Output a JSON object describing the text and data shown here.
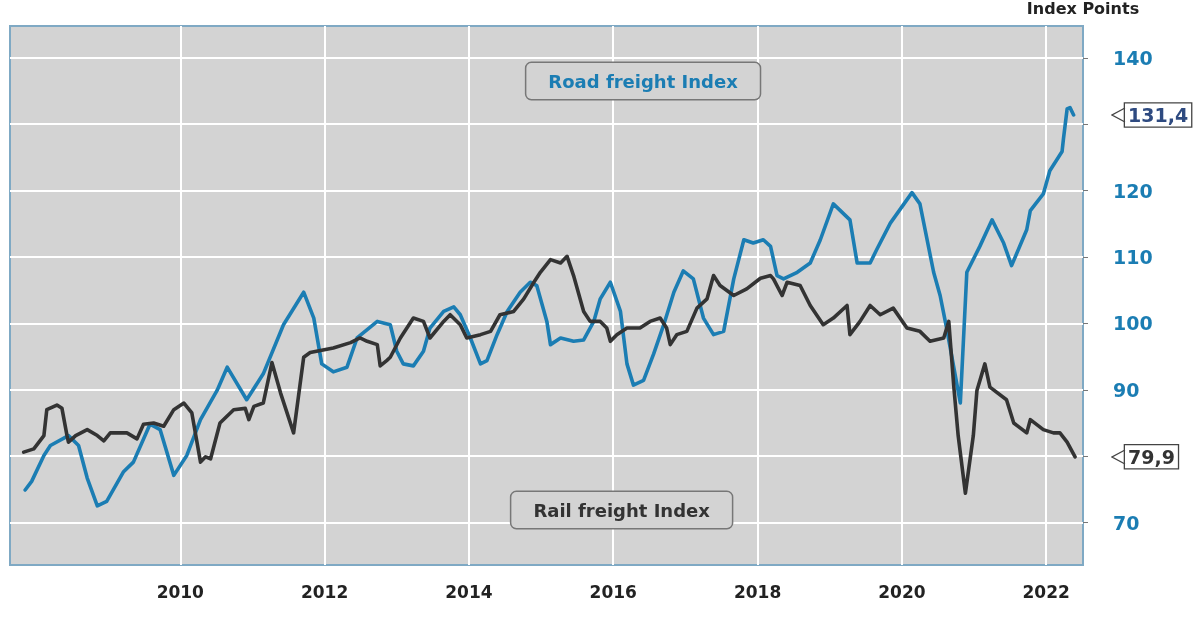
{
  "chart_data": {
    "type": "line",
    "ylabel": "Index Points",
    "xlim": [
      2007.64,
      2022.51
    ],
    "xticks": [
      2010,
      2012,
      2014,
      2016,
      2018,
      2020,
      2022
    ],
    "ylim": [
      63.6,
      144.8
    ],
    "yticks": [
      70,
      {
        "value": 80,
        "label": null
      },
      90,
      100,
      110,
      120,
      {
        "value": 130,
        "label": null
      },
      140
    ],
    "grid": true,
    "legend": false,
    "marker": "none",
    "line_style": "solid",
    "annotations": [
      {
        "text": "131,4",
        "x": 2022.38,
        "y": 131.4
      },
      {
        "text": "79,9",
        "x": 2022.4,
        "y": 79.9
      }
    ],
    "series": [
      {
        "name": "Road freight Index",
        "color": "#1b7db3",
        "x": [
          2007.85,
          2007.94,
          2008.11,
          2008.2,
          2008.45,
          2008.59,
          2008.71,
          2008.85,
          2008.98,
          2009.21,
          2009.35,
          2009.58,
          2009.72,
          2009.91,
          2010.09,
          2010.28,
          2010.51,
          2010.65,
          2010.92,
          2011.15,
          2011.43,
          2011.71,
          2011.85,
          2011.96,
          2012.12,
          2012.31,
          2012.45,
          2012.73,
          2012.91,
          2013.0,
          2013.09,
          2013.23,
          2013.37,
          2013.46,
          2013.65,
          2013.79,
          2013.88,
          2014.02,
          2014.16,
          2014.25,
          2014.39,
          2014.53,
          2014.71,
          2014.85,
          2014.94,
          2015.08,
          2015.13,
          2015.27,
          2015.45,
          2015.59,
          2015.73,
          2015.82,
          2015.96,
          2016.1,
          2016.19,
          2016.28,
          2016.42,
          2016.56,
          2016.7,
          2016.84,
          2016.97,
          2017.11,
          2017.25,
          2017.39,
          2017.53,
          2017.67,
          2017.81,
          2017.94,
          2018.08,
          2018.18,
          2018.27,
          2018.36,
          2018.55,
          2018.73,
          2018.87,
          2019.05,
          2019.28,
          2019.38,
          2019.56,
          2019.65,
          2019.84,
          2020.14,
          2020.25,
          2020.44,
          2020.53,
          2020.62,
          2020.81,
          2020.9,
          2021.08,
          2021.25,
          2021.41,
          2021.52,
          2021.73,
          2021.78,
          2021.96,
          2022.05,
          2022.22,
          2022.24,
          2022.29,
          2022.33,
          2022.38
        ],
        "values": [
          74.9,
          76.2,
          80.1,
          81.6,
          83.1,
          81.6,
          76.7,
          72.5,
          73.2,
          77.6,
          79.1,
          84.8,
          84.0,
          77.1,
          80.1,
          85.5,
          89.9,
          93.4,
          88.5,
          92.4,
          99.8,
          104.7,
          100.8,
          93.9,
          92.7,
          93.4,
          97.8,
          100.3,
          99.8,
          95.8,
          93.9,
          93.6,
          95.8,
          99.3,
          101.8,
          102.5,
          101.3,
          97.8,
          93.9,
          94.4,
          98.3,
          101.8,
          104.7,
          106.2,
          105.7,
          100.3,
          96.8,
          97.8,
          97.3,
          97.5,
          100.3,
          103.7,
          106.2,
          101.8,
          93.9,
          90.7,
          91.4,
          95.4,
          99.8,
          104.7,
          107.9,
          106.7,
          100.8,
          98.3,
          98.8,
          106.7,
          112.6,
          112.1,
          112.6,
          111.6,
          107.2,
          106.7,
          107.7,
          109.1,
          112.6,
          118.0,
          115.6,
          109.1,
          109.1,
          111.1,
          115.1,
          119.7,
          118.0,
          107.7,
          104.2,
          99.3,
          88.0,
          107.7,
          111.6,
          115.6,
          112.1,
          108.7,
          114.1,
          117.0,
          119.5,
          123.0,
          125.9,
          127.9,
          132.3,
          132.5,
          131.4
        ]
      },
      {
        "name": "Rail freight Index",
        "color": "#333333",
        "x": [
          2007.83,
          2007.97,
          2008.11,
          2008.15,
          2008.29,
          2008.36,
          2008.43,
          2008.45,
          2008.55,
          2008.71,
          2008.85,
          2008.94,
          2009.03,
          2009.26,
          2009.4,
          2009.49,
          2009.63,
          2009.77,
          2009.91,
          2010.05,
          2010.16,
          2010.28,
          2010.35,
          2010.42,
          2010.55,
          2010.74,
          2010.9,
          2010.95,
          2011.02,
          2011.15,
          2011.27,
          2011.39,
          2011.57,
          2011.71,
          2011.8,
          2012.12,
          2012.36,
          2012.49,
          2012.59,
          2012.73,
          2012.77,
          2012.86,
          2012.91,
          2013.05,
          2013.23,
          2013.37,
          2013.46,
          2013.65,
          2013.74,
          2013.88,
          2013.97,
          2014.16,
          2014.3,
          2014.43,
          2014.62,
          2014.76,
          2014.9,
          2014.99,
          2015.13,
          2015.27,
          2015.36,
          2015.45,
          2015.59,
          2015.68,
          2015.82,
          2015.91,
          2015.96,
          2016.05,
          2016.19,
          2016.37,
          2016.51,
          2016.65,
          2016.74,
          2016.79,
          2016.88,
          2017.02,
          2017.16,
          2017.3,
          2017.39,
          2017.48,
          2017.67,
          2017.85,
          2018.04,
          2018.18,
          2018.22,
          2018.34,
          2018.41,
          2018.59,
          2018.73,
          2018.91,
          2019.05,
          2019.24,
          2019.28,
          2019.42,
          2019.56,
          2019.7,
          2019.88,
          2020.07,
          2020.25,
          2020.39,
          2020.58,
          2020.65,
          2020.72,
          2020.78,
          2020.88,
          2020.99,
          2021.04,
          2021.15,
          2021.22,
          2021.45,
          2021.55,
          2021.73,
          2021.78,
          2021.96,
          2022.1,
          2022.19,
          2022.29,
          2022.4
        ],
        "values": [
          80.6,
          81.1,
          83.1,
          87.0,
          87.7,
          87.2,
          83.1,
          82.1,
          83.1,
          84.0,
          83.1,
          82.3,
          83.5,
          83.5,
          82.6,
          84.8,
          85.0,
          84.5,
          87.0,
          88.0,
          86.5,
          79.1,
          79.9,
          79.6,
          85.0,
          87.0,
          87.2,
          85.5,
          87.5,
          88.0,
          94.1,
          89.5,
          83.5,
          94.9,
          95.6,
          96.3,
          97.1,
          97.8,
          97.3,
          96.8,
          93.6,
          94.4,
          94.9,
          97.8,
          100.8,
          100.3,
          97.8,
          100.3,
          101.3,
          99.8,
          97.8,
          98.3,
          98.8,
          101.3,
          101.8,
          103.7,
          106.2,
          107.7,
          109.6,
          109.1,
          110.1,
          107.2,
          101.8,
          100.3,
          100.3,
          99.3,
          97.3,
          98.3,
          99.3,
          99.3,
          100.3,
          100.8,
          99.3,
          96.8,
          98.3,
          98.8,
          102.3,
          103.7,
          107.2,
          105.7,
          104.2,
          105.2,
          106.8,
          107.2,
          106.7,
          104.2,
          106.2,
          105.7,
          102.7,
          99.8,
          100.8,
          102.7,
          98.3,
          100.3,
          102.7,
          101.3,
          102.3,
          99.3,
          98.8,
          97.3,
          97.8,
          100.3,
          90.4,
          83.1,
          74.4,
          83.1,
          89.9,
          93.9,
          90.4,
          88.5,
          85.0,
          83.5,
          85.5,
          84.0,
          83.5,
          83.5,
          82.1,
          79.9
        ]
      }
    ]
  }
}
